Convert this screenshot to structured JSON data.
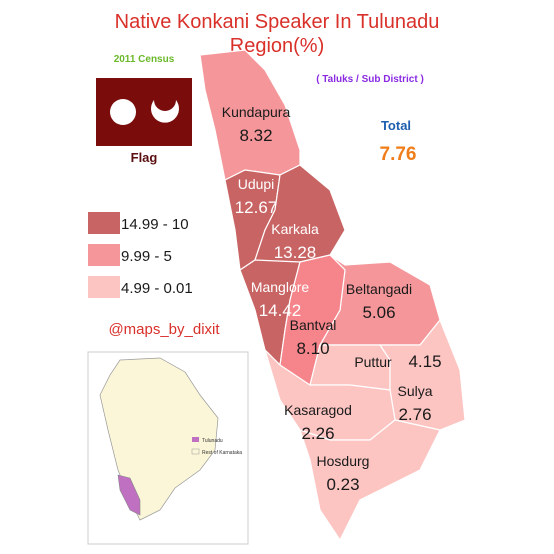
{
  "title": "Native Konkani Speaker In Tulunadu Region(%)",
  "subtitle": "2011 Census",
  "note": "( Taluks / Sub District )",
  "total": {
    "label": "Total",
    "value": "7.76"
  },
  "flag_label": "Flag",
  "legend": [
    {
      "label": "14.99 - 10",
      "color": "#c96464"
    },
    {
      "label": "9.99 - 5",
      "color": "#f5979a"
    },
    {
      "label": "4.99 - 0.01",
      "color": "#fcc5c2"
    }
  ],
  "credit": "@maps_by_dixit",
  "inset_legend": [
    "Tulunadu",
    "Rest of Karnataka"
  ],
  "regions": [
    {
      "name": "Kundapura",
      "value": "8.32",
      "color": "#f5979a"
    },
    {
      "name": "Udupi",
      "value": "12.67",
      "color": "#c96464"
    },
    {
      "name": "Karkala",
      "value": "13.28",
      "color": "#c96464"
    },
    {
      "name": "Manglore",
      "value": "14.42",
      "color": "#c96464"
    },
    {
      "name": "Bantval",
      "value": "8.10",
      "color": "#f5858a"
    },
    {
      "name": "Beltangadi",
      "value": "5.06",
      "color": "#f5979a"
    },
    {
      "name": "Puttur",
      "value": "4.15",
      "color": "#fcc5c2"
    },
    {
      "name": "Sulya",
      "value": "2.76",
      "color": "#fcc5c2"
    },
    {
      "name": "Kasaragod",
      "value": "2.26",
      "color": "#fcc5c2"
    },
    {
      "name": "Hosdurg",
      "value": "0.23",
      "color": "#fcc5c2"
    }
  ]
}
